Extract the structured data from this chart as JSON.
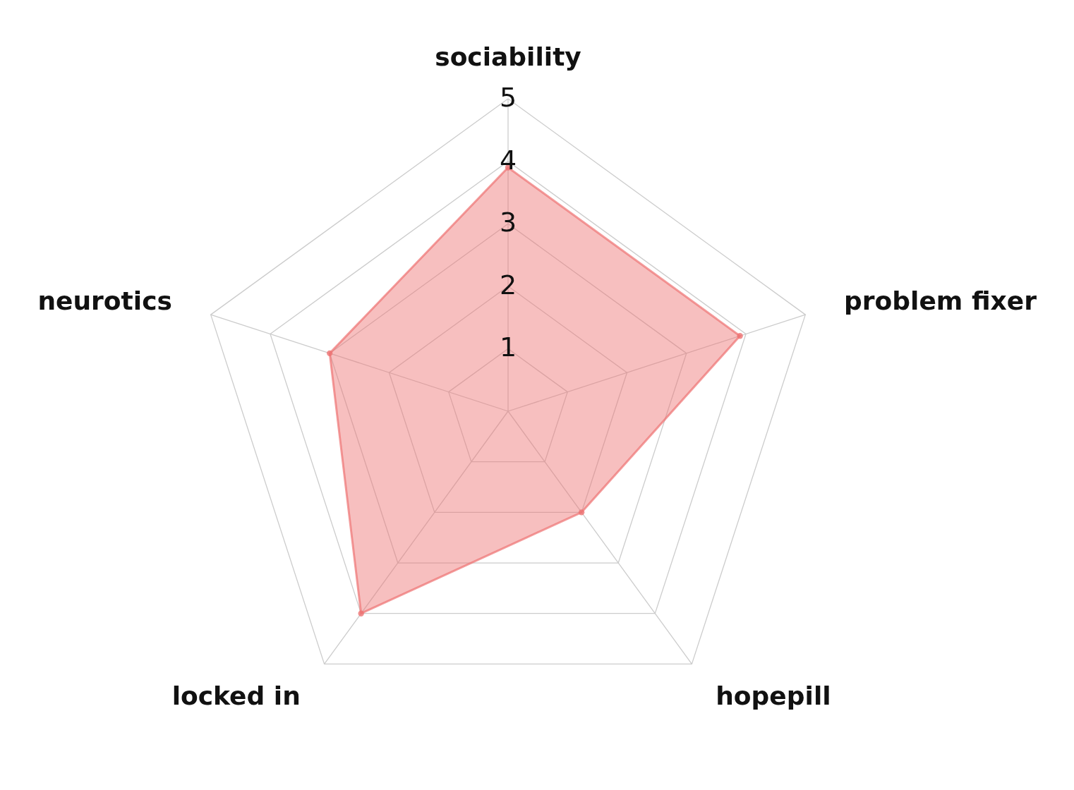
{
  "chart_data": {
    "type": "radar",
    "categories": [
      "sociability",
      "problem fixer",
      "hopepill",
      "locked in",
      "neurotics"
    ],
    "series": [
      {
        "color": "#ee7272",
        "values": [
          3.9,
          3.9,
          2,
          4,
          3
        ]
      }
    ],
    "ylim": [
      0,
      5
    ],
    "yticks": [
      1,
      2,
      3,
      4,
      5
    ],
    "grid": true,
    "marker": "circle"
  }
}
